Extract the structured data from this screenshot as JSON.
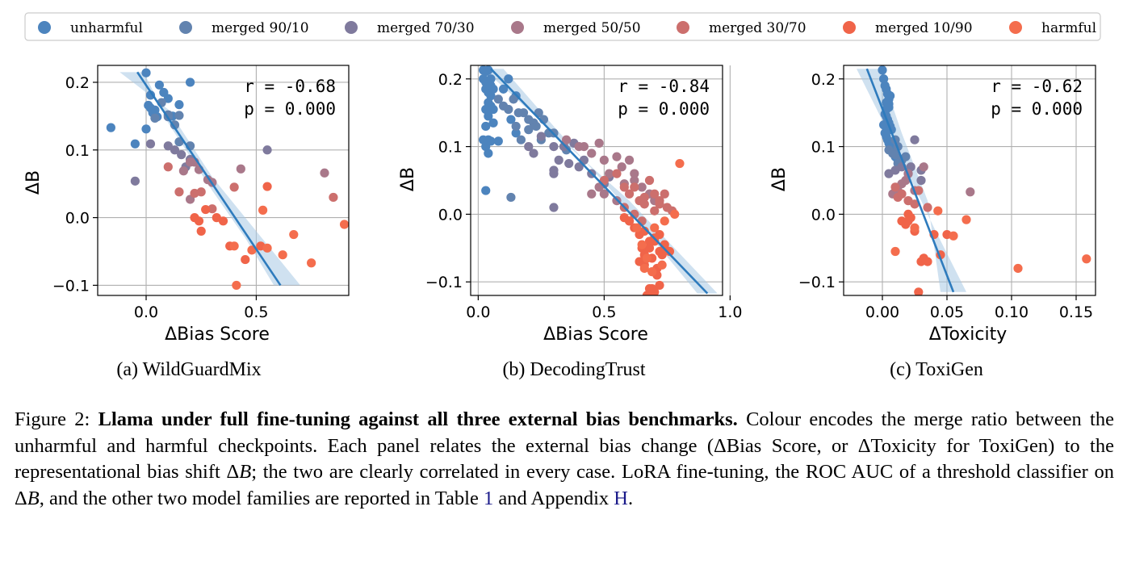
{
  "legend": [
    {
      "label": "unharmful",
      "color": "#4c84be"
    },
    {
      "label": "merged 90/10",
      "color": "#6283af"
    },
    {
      "label": "merged 70/30",
      "color": "#7f7a9d"
    },
    {
      "label": "merged 50/50",
      "color": "#a9788a"
    },
    {
      "label": "merged 30/70",
      "color": "#cc6f6d"
    },
    {
      "label": "merged 10/90",
      "color": "#f06449"
    },
    {
      "label": "harmful",
      "color": "#f46d4d"
    }
  ],
  "panels": [
    {
      "sublabel": "(a) WildGuardMix",
      "xlabel": "ΔBias Score",
      "ylabel": "ΔB",
      "annotation": [
        "r = -0.68",
        "p = 0.000"
      ]
    },
    {
      "sublabel": "(b) DecodingTrust",
      "xlabel": "ΔBias Score",
      "ylabel": "ΔB",
      "annotation": [
        "r = -0.84",
        "p = 0.000"
      ]
    },
    {
      "sublabel": "(c) ToxiGen",
      "xlabel": "ΔToxicity",
      "ylabel": "ΔB",
      "annotation": [
        "r = -0.62",
        "p = 0.000"
      ]
    }
  ],
  "caption": {
    "prefix": "Figure 2: ",
    "bold": "Llama under full fine-tuning against all three external bias benchmarks.",
    "part1": " Colour encodes the merge ratio between the unharmful and harmful checkpoints. Each panel relates the external bias change (ΔBias Score, or ΔToxicity for ToxiGen) to the representational bias shift Δ",
    "var1": "B",
    "part2": "; the two are clearly correlated in every case. LoRA fine-tuning, the ROC AUC of a threshold classifier on Δ",
    "var2": "B",
    "part3": ", and the other two model families are reported in Table ",
    "ref1": "1",
    "part4": " and Appendix ",
    "ref2": "H",
    "part5": "."
  },
  "chart_data": [
    {
      "type": "scatter",
      "title": "",
      "xlabel": "ΔBias Score",
      "ylabel": "ΔB",
      "xlim": [
        -0.22,
        0.92
      ],
      "ylim": [
        -0.115,
        0.225
      ],
      "xticks": [
        0.0,
        0.5
      ],
      "xtick_labels": [
        "0.0",
        "0.5"
      ],
      "yticks": [
        -0.1,
        0.0,
        0.1,
        0.2
      ],
      "ytick_labels": [
        "−0.1",
        "0.0",
        "0.1",
        "0.2"
      ],
      "grid": true,
      "r": -0.68,
      "p": 0.0,
      "fit": {
        "x": [
          -0.04,
          0.61
        ],
        "y": [
          0.215,
          -0.1
        ]
      },
      "band": {
        "upper": [
          [
            -0.12,
            0.215
          ],
          [
            0.1,
            0.16
          ],
          [
            0.3,
            0.06
          ],
          [
            0.5,
            -0.02
          ],
          [
            0.7,
            -0.1
          ]
        ],
        "lower": [
          [
            -0.01,
            0.215
          ],
          [
            0.1,
            0.14
          ],
          [
            0.3,
            0.04
          ],
          [
            0.45,
            -0.03
          ],
          [
            0.58,
            -0.1
          ]
        ]
      },
      "series": [
        {
          "name": "unharmful",
          "x": [
            -0.16,
            -0.05,
            0.0,
            0.0,
            0.01,
            0.02,
            0.03,
            0.05,
            0.06,
            0.08,
            0.1,
            0.12,
            0.15,
            0.2,
            0.02,
            0.04
          ],
          "y": [
            0.133,
            0.109,
            0.214,
            0.131,
            0.166,
            0.181,
            0.155,
            0.149,
            0.196,
            0.185,
            0.176,
            0.15,
            0.167,
            0.2,
            0.162,
            0.159
          ]
        },
        {
          "name": "merged 90/10",
          "x": [
            0.04,
            0.07,
            0.1,
            0.13,
            0.15,
            0.2,
            0.1,
            0.15
          ],
          "y": [
            0.147,
            0.17,
            0.152,
            0.137,
            0.151,
            0.106,
            0.149,
            0.112
          ]
        },
        {
          "name": "merged 70/30",
          "x": [
            -0.05,
            0.02,
            0.1,
            0.13,
            0.16,
            0.18,
            0.2,
            0.55
          ],
          "y": [
            0.054,
            0.109,
            0.106,
            0.1,
            0.093,
            0.075,
            0.086,
            0.1
          ]
        },
        {
          "name": "merged 50/50",
          "x": [
            0.2,
            0.22,
            0.28,
            0.3,
            0.43,
            0.81,
            0.17,
            0.2,
            0.24
          ],
          "y": [
            0.027,
            0.082,
            0.056,
            0.052,
            0.072,
            0.066,
            0.069,
            0.082,
            0.071
          ]
        },
        {
          "name": "merged 30/70",
          "x": [
            0.1,
            0.15,
            0.22,
            0.25,
            0.3,
            0.85,
            0.4
          ],
          "y": [
            0.075,
            0.038,
            0.036,
            0.038,
            0.013,
            0.03,
            0.045
          ]
        },
        {
          "name": "merged 10/90",
          "x": [
            0.22,
            0.24,
            0.25,
            0.27,
            0.32,
            0.35,
            0.38,
            0.45,
            0.52,
            0.55
          ],
          "y": [
            0.0,
            -0.005,
            -0.02,
            0.012,
            0.0,
            -0.005,
            -0.042,
            -0.062,
            -0.042,
            0.046
          ]
        },
        {
          "name": "harmful",
          "x": [
            0.4,
            0.41,
            0.48,
            0.53,
            0.55,
            0.62,
            0.67,
            0.75,
            0.9
          ],
          "y": [
            -0.042,
            -0.1,
            -0.048,
            0.011,
            -0.045,
            -0.055,
            -0.025,
            -0.067,
            -0.01
          ]
        }
      ]
    },
    {
      "type": "scatter",
      "title": "",
      "xlabel": "ΔBias Score",
      "ylabel": "ΔB",
      "xlim": [
        -0.03,
        0.97
      ],
      "ylim": [
        -0.12,
        0.22
      ],
      "xticks": [
        0.0,
        0.5,
        1.0
      ],
      "xtick_labels": [
        "0.0",
        "0.5",
        "1.0"
      ],
      "yticks": [
        -0.1,
        0.0,
        0.1,
        0.2
      ],
      "ytick_labels": [
        "−0.1",
        "0.0",
        "0.1",
        "0.2"
      ],
      "grid": true,
      "r": -0.84,
      "p": 0.0,
      "fit": {
        "x": [
          0.05,
          0.91
        ],
        "y": [
          0.215,
          -0.117
        ]
      },
      "band": {
        "upper": [
          [
            0.02,
            0.215
          ],
          [
            0.3,
            0.12
          ],
          [
            0.6,
            0.02
          ],
          [
            0.95,
            -0.117
          ]
        ],
        "lower": [
          [
            0.1,
            0.215
          ],
          [
            0.3,
            0.13
          ],
          [
            0.6,
            0.005
          ],
          [
            0.87,
            -0.117
          ]
        ]
      },
      "series": [
        {
          "name": "unharmful",
          "x": [
            0.02,
            0.02,
            0.03,
            0.03,
            0.03,
            0.04,
            0.04,
            0.04,
            0.05,
            0.05,
            0.05,
            0.06,
            0.06,
            0.03,
            0.04,
            0.05,
            0.1,
            0.12,
            0.15,
            0.03,
            0.06,
            0.13,
            0.04,
            0.05,
            0.15,
            0.03,
            0.08,
            0.02,
            0.03,
            0.04
          ],
          "y": [
            0.213,
            0.2,
            0.211,
            0.195,
            0.185,
            0.213,
            0.18,
            0.165,
            0.19,
            0.175,
            0.16,
            0.185,
            0.155,
            0.155,
            0.145,
            0.2,
            0.185,
            0.2,
            0.175,
            0.13,
            0.135,
            0.14,
            0.11,
            0.108,
            0.12,
            0.1,
            0.108,
            0.11,
            0.035,
            0.09
          ]
        },
        {
          "name": "merged 90/10",
          "x": [
            0.08,
            0.1,
            0.12,
            0.14,
            0.16,
            0.18,
            0.2,
            0.22,
            0.24,
            0.26,
            0.28,
            0.15,
            0.17,
            0.2,
            0.25,
            0.3,
            0.35,
            0.13,
            0.23
          ],
          "y": [
            0.17,
            0.16,
            0.155,
            0.17,
            0.15,
            0.15,
            0.14,
            0.135,
            0.15,
            0.14,
            0.12,
            0.13,
            0.11,
            0.125,
            0.11,
            0.12,
            0.095,
            0.025,
            0.13
          ]
        },
        {
          "name": "merged 70/30",
          "x": [
            0.2,
            0.22,
            0.25,
            0.3,
            0.32,
            0.34,
            0.36,
            0.3,
            0.3,
            0.4,
            0.42,
            0.45,
            0.38,
            0.5,
            0.52,
            0.3
          ],
          "y": [
            0.1,
            0.09,
            0.115,
            0.1,
            0.08,
            0.1,
            0.075,
            0.065,
            0.06,
            0.07,
            0.08,
            0.06,
            0.105,
            0.045,
            0.055,
            0.01
          ]
        },
        {
          "name": "merged 50/50",
          "x": [
            0.35,
            0.4,
            0.42,
            0.45,
            0.48,
            0.5,
            0.52,
            0.55,
            0.57,
            0.6,
            0.62,
            0.48,
            0.45,
            0.5,
            0.55,
            0.58,
            0.62,
            0.65,
            0.68,
            0.7
          ],
          "y": [
            0.11,
            0.1,
            0.1,
            0.09,
            0.105,
            0.08,
            0.06,
            0.085,
            0.07,
            0.08,
            0.06,
            0.04,
            0.03,
            0.03,
            0.02,
            0.045,
            0.05,
            0.04,
            0.03,
            0.02
          ]
        },
        {
          "name": "merged 30/70",
          "x": [
            0.5,
            0.55,
            0.58,
            0.6,
            0.62,
            0.64,
            0.66,
            0.68,
            0.7,
            0.72,
            0.74,
            0.58,
            0.62,
            0.65,
            0.7,
            0.72,
            0.75,
            0.77,
            0.6,
            0.66
          ],
          "y": [
            0.05,
            0.06,
            0.04,
            0.03,
            0.04,
            0.02,
            0.025,
            0.05,
            0.03,
            0.02,
            0.03,
            0.01,
            0.0,
            -0.01,
            0.005,
            0.015,
            0.01,
            0.005,
            -0.01,
            0.015
          ]
        },
        {
          "name": "merged 10/90",
          "x": [
            0.58,
            0.6,
            0.62,
            0.64,
            0.66,
            0.68,
            0.7,
            0.72,
            0.74,
            0.65,
            0.66,
            0.68,
            0.7,
            0.72,
            0.73,
            0.64,
            0.66,
            0.69,
            0.71,
            0.74,
            0.76,
            0.68,
            0.7,
            0.72,
            0.67,
            0.69,
            0.71
          ],
          "y": [
            -0.005,
            -0.01,
            -0.02,
            -0.03,
            -0.025,
            -0.04,
            -0.035,
            -0.03,
            -0.045,
            -0.05,
            -0.06,
            -0.05,
            -0.04,
            -0.055,
            -0.06,
            -0.07,
            -0.075,
            -0.065,
            -0.08,
            -0.05,
            -0.055,
            -0.11,
            -0.115,
            -0.105,
            -0.12,
            -0.11,
            -0.09
          ]
        },
        {
          "name": "harmful",
          "x": [
            0.63,
            0.65,
            0.67,
            0.7,
            0.74,
            0.78,
            0.8,
            0.66,
            0.69,
            0.73
          ],
          "y": [
            -0.02,
            -0.045,
            -0.065,
            -0.02,
            -0.01,
            0.0,
            0.075,
            -0.08,
            -0.085,
            -0.075
          ]
        }
      ]
    },
    {
      "type": "scatter",
      "title": "",
      "xlabel": "ΔToxicity",
      "ylabel": "ΔB",
      "xlim": [
        -0.03,
        0.165
      ],
      "ylim": [
        -0.12,
        0.22
      ],
      "xticks": [
        0.0,
        0.05,
        0.1,
        0.15
      ],
      "xtick_labels": [
        "0.00",
        "0.05",
        "0.10",
        "0.15"
      ],
      "yticks": [
        -0.1,
        0.0,
        0.1,
        0.2
      ],
      "ytick_labels": [
        "−0.1",
        "0.0",
        "0.1",
        "0.2"
      ],
      "grid": true,
      "r": -0.62,
      "p": 0.0,
      "fit": {
        "x": [
          -0.012,
          0.055
        ],
        "y": [
          0.215,
          -0.115
        ]
      },
      "band": {
        "upper": [
          [
            -0.02,
            0.215
          ],
          [
            0.01,
            0.1
          ],
          [
            0.04,
            -0.02
          ],
          [
            0.065,
            -0.115
          ]
        ],
        "lower": [
          [
            -0.002,
            0.215
          ],
          [
            0.015,
            0.12
          ],
          [
            0.035,
            0.02
          ],
          [
            0.045,
            -0.115
          ]
        ]
      },
      "series": [
        {
          "name": "unharmful",
          "x": [
            0.0,
            0.001,
            0.002,
            0.003,
            0.004,
            0.005,
            0.006,
            0.003,
            0.004,
            0.005,
            0.002,
            0.003,
            0.004,
            0.005,
            0.006,
            0.007,
            0.001,
            0.002,
            0.003,
            0.004,
            0.005,
            0.006,
            0.007,
            0.008,
            0.01,
            0.012,
            0.003,
            0.005
          ],
          "y": [
            0.213,
            0.2,
            0.19,
            0.185,
            0.178,
            0.17,
            0.175,
            0.165,
            0.16,
            0.158,
            0.148,
            0.145,
            0.14,
            0.135,
            0.13,
            0.125,
            0.132,
            0.12,
            0.115,
            0.11,
            0.105,
            0.1,
            0.095,
            0.09,
            0.085,
            0.08,
            0.155,
            0.163
          ]
        },
        {
          "name": "merged 90/10",
          "x": [
            0.005,
            0.008,
            0.01,
            0.012,
            0.015,
            0.018,
            0.01,
            0.012
          ],
          "y": [
            0.095,
            0.09,
            0.088,
            0.1,
            0.08,
            0.085,
            0.11,
            0.075
          ]
        },
        {
          "name": "merged 70/30",
          "x": [
            0.005,
            0.01,
            0.015,
            0.02,
            0.025,
            0.03,
            0.022,
            0.03
          ],
          "y": [
            0.06,
            0.065,
            0.07,
            0.06,
            0.11,
            0.065,
            0.07,
            0.05
          ]
        },
        {
          "name": "merged 50/50",
          "x": [
            0.008,
            0.012,
            0.018,
            0.025,
            0.032,
            0.068,
            0.015,
            0.02
          ],
          "y": [
            0.03,
            0.035,
            0.05,
            0.035,
            0.07,
            0.033,
            0.045,
            0.06
          ]
        },
        {
          "name": "merged 30/70",
          "x": [
            0.01,
            0.012,
            0.015,
            0.02,
            0.025,
            0.028,
            0.035
          ],
          "y": [
            0.04,
            0.025,
            0.03,
            0.02,
            0.015,
            0.035,
            0.01
          ]
        },
        {
          "name": "merged 10/90",
          "x": [
            0.015,
            0.018,
            0.02,
            0.022,
            0.025,
            0.03,
            0.032,
            0.035,
            0.04,
            0.045,
            0.05,
            0.028,
            0.02
          ],
          "y": [
            -0.01,
            -0.015,
            0.0,
            -0.005,
            -0.025,
            -0.07,
            -0.065,
            -0.07,
            -0.03,
            -0.06,
            -0.03,
            -0.115,
            -0.01
          ]
        },
        {
          "name": "harmful",
          "x": [
            0.01,
            0.025,
            0.043,
            0.055,
            0.065,
            0.105,
            0.158
          ],
          "y": [
            -0.055,
            -0.02,
            0.005,
            -0.032,
            -0.008,
            -0.08,
            -0.066
          ]
        }
      ]
    }
  ]
}
